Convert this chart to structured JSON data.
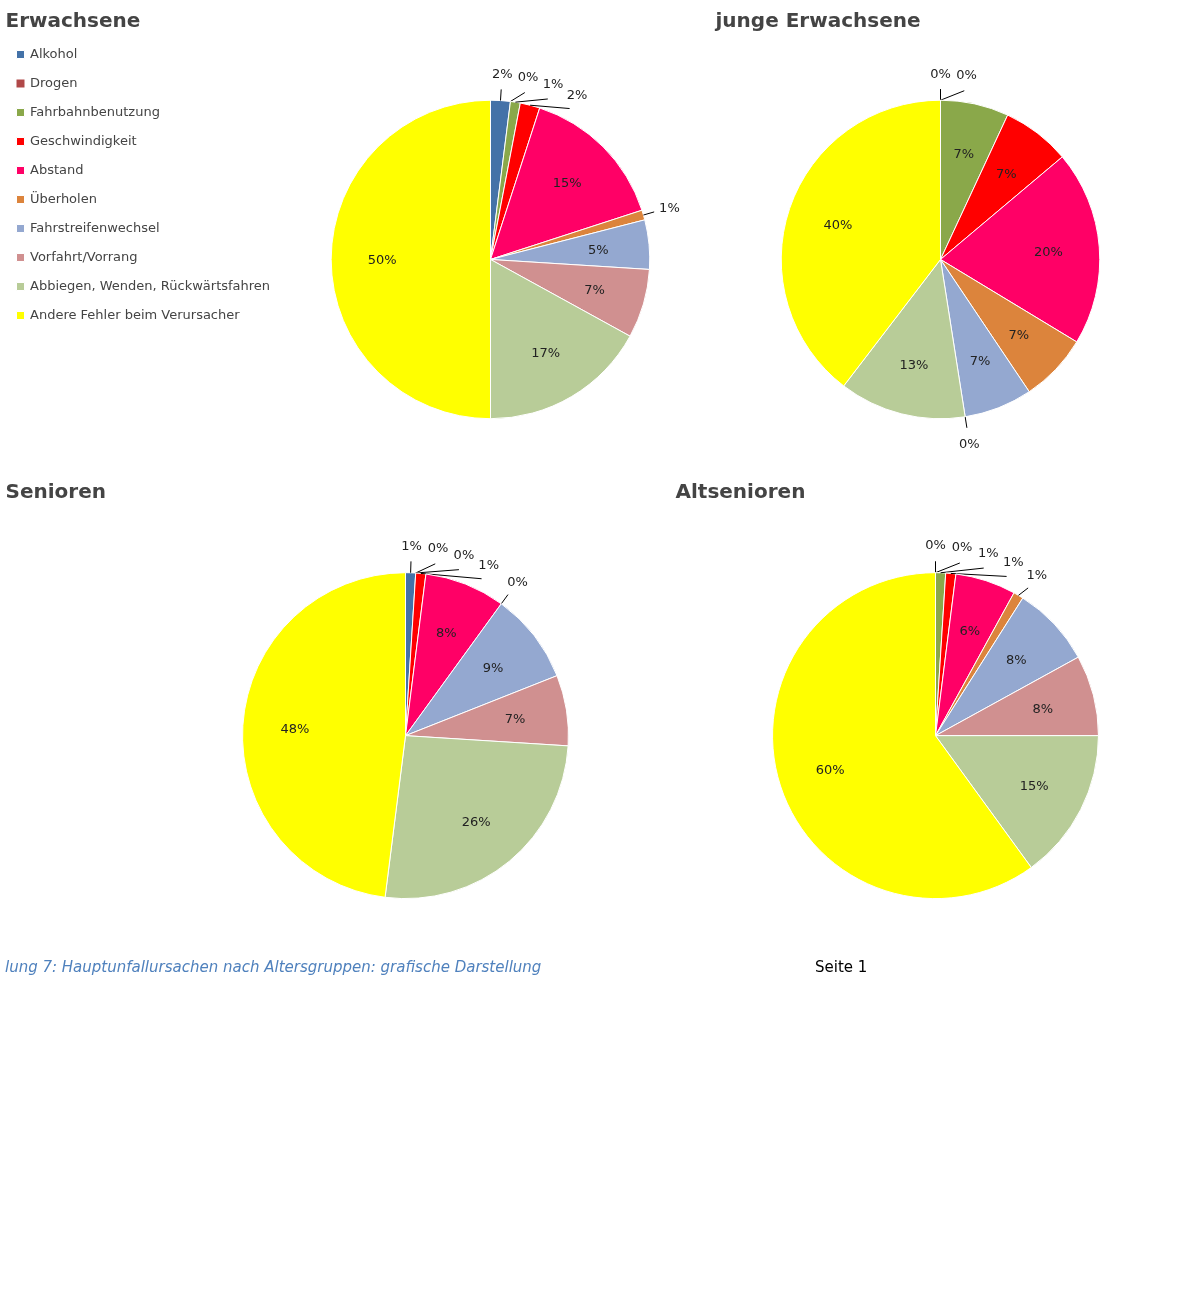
{
  "chart_data": [
    {
      "type": "pie",
      "title": "Erwachsene",
      "legend": "left",
      "categories": [
        "Alkohol",
        "Drogen",
        "Fahrbahnbenutzung",
        "Geschwindigkeit",
        "Abstand",
        "Überholen",
        "Fahrstreifenwechsel",
        "Vorfahrt/Vorrang",
        "Abbiegen, Wenden, Rückwärtsfahren",
        "Andere Fehler beim Verursacher"
      ],
      "values": [
        2,
        0,
        1,
        2,
        15,
        1,
        5,
        7,
        17,
        50
      ],
      "value_labels": [
        "2%",
        "0%",
        "1%",
        "2%",
        "15%",
        "1%",
        "5%",
        "7%",
        "17%",
        "50%"
      ],
      "colors": [
        "#4472a8",
        "#b04848",
        "#8aa84a",
        "#ff0000",
        "#ff0066",
        "#dc843c",
        "#94a8d0",
        "#d09090",
        "#b8cc98",
        "#ffff00"
      ],
      "annotations": [
        "lung 7: Hauptunfallursachen nach Altersgruppen: grafische Darstellung",
        "Seite 1"
      ]
    },
    {
      "type": "pie",
      "title": "junge Erwachsene",
      "values": [
        0,
        0,
        7,
        7,
        20,
        7,
        7,
        0,
        13,
        40
      ],
      "value_labels": [
        "0%",
        "0%",
        "7%",
        "7%",
        "20%",
        "7%",
        "7%",
        "0%",
        "13%",
        "40%"
      ],
      "colors": [
        "#4472a8",
        "#b04848",
        "#8aa84a",
        "#ff0000",
        "#ff0066",
        "#dc843c",
        "#94a8d0",
        "#d09090",
        "#b8cc98",
        "#ffff00"
      ]
    },
    {
      "type": "pie",
      "title": "Senioren",
      "values": [
        1,
        0,
        0,
        1,
        8,
        0,
        9,
        7,
        26,
        48
      ],
      "value_labels": [
        "1%",
        "0%",
        "0%",
        "1%",
        "8%",
        "0%",
        "9%",
        "7%",
        "26%",
        "48%"
      ],
      "colors": [
        "#4472a8",
        "#b04848",
        "#8aa84a",
        "#ff0000",
        "#ff0066",
        "#dc843c",
        "#94a8d0",
        "#d09090",
        "#b8cc98",
        "#ffff00"
      ]
    },
    {
      "type": "pie",
      "title": "Altsenioren",
      "values": [
        0,
        0,
        1,
        1,
        6,
        1,
        8,
        8,
        15,
        60
      ],
      "value_labels": [
        "0%",
        "0%",
        "1%",
        "1%",
        "6%",
        "1%",
        "8%",
        "8%",
        "15%",
        "60%"
      ],
      "colors": [
        "#4472a8",
        "#b04848",
        "#8aa84a",
        "#ff0000",
        "#ff0066",
        "#dc843c",
        "#94a8d0",
        "#d09090",
        "#b8cc98",
        "#ffff00"
      ]
    }
  ]
}
